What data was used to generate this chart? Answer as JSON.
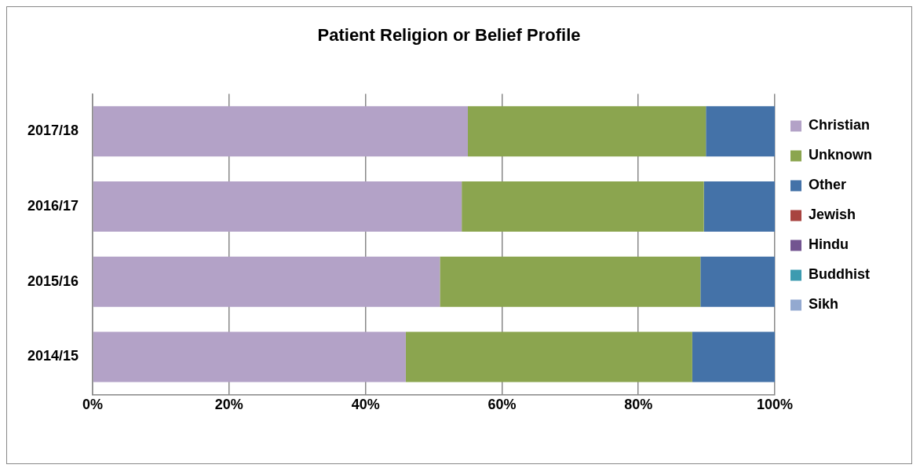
{
  "chart_data": {
    "type": "bar",
    "title": "Patient Religion or Belief Profile",
    "orientation": "horizontal",
    "stacked": true,
    "categories": [
      "2017/18",
      "2016/17",
      "2015/16",
      "2014/15"
    ],
    "series": [
      {
        "name": "Christian",
        "color": "#b3a2c7",
        "values": [
          55.0,
          54.1,
          50.9,
          45.9
        ]
      },
      {
        "name": "Unknown",
        "color": "#8ba54f",
        "values": [
          34.9,
          35.5,
          38.2,
          42.0
        ]
      },
      {
        "name": "Other",
        "color": "#4472a8",
        "values": [
          10.1,
          10.4,
          10.9,
          12.1
        ]
      },
      {
        "name": "Jewish",
        "color": "#a84440",
        "values": [
          0,
          0,
          0,
          0
        ]
      },
      {
        "name": "Hindu",
        "color": "#725490",
        "values": [
          0,
          0,
          0,
          0
        ]
      },
      {
        "name": "Buddhist",
        "color": "#3d9bb0",
        "values": [
          0,
          0,
          0,
          0
        ]
      },
      {
        "name": "Sikh",
        "color": "#93a9d0",
        "values": [
          0,
          0,
          0,
          0
        ]
      }
    ],
    "xlim": [
      0,
      100
    ],
    "xticks": [
      {
        "value": 0,
        "label": "0%"
      },
      {
        "value": 20,
        "label": "20%"
      },
      {
        "value": 40,
        "label": "40%"
      },
      {
        "value": 60,
        "label": "60%"
      },
      {
        "value": 80,
        "label": "80%"
      },
      {
        "value": 100,
        "label": "100%"
      }
    ],
    "grid": "x",
    "legend": "right"
  }
}
